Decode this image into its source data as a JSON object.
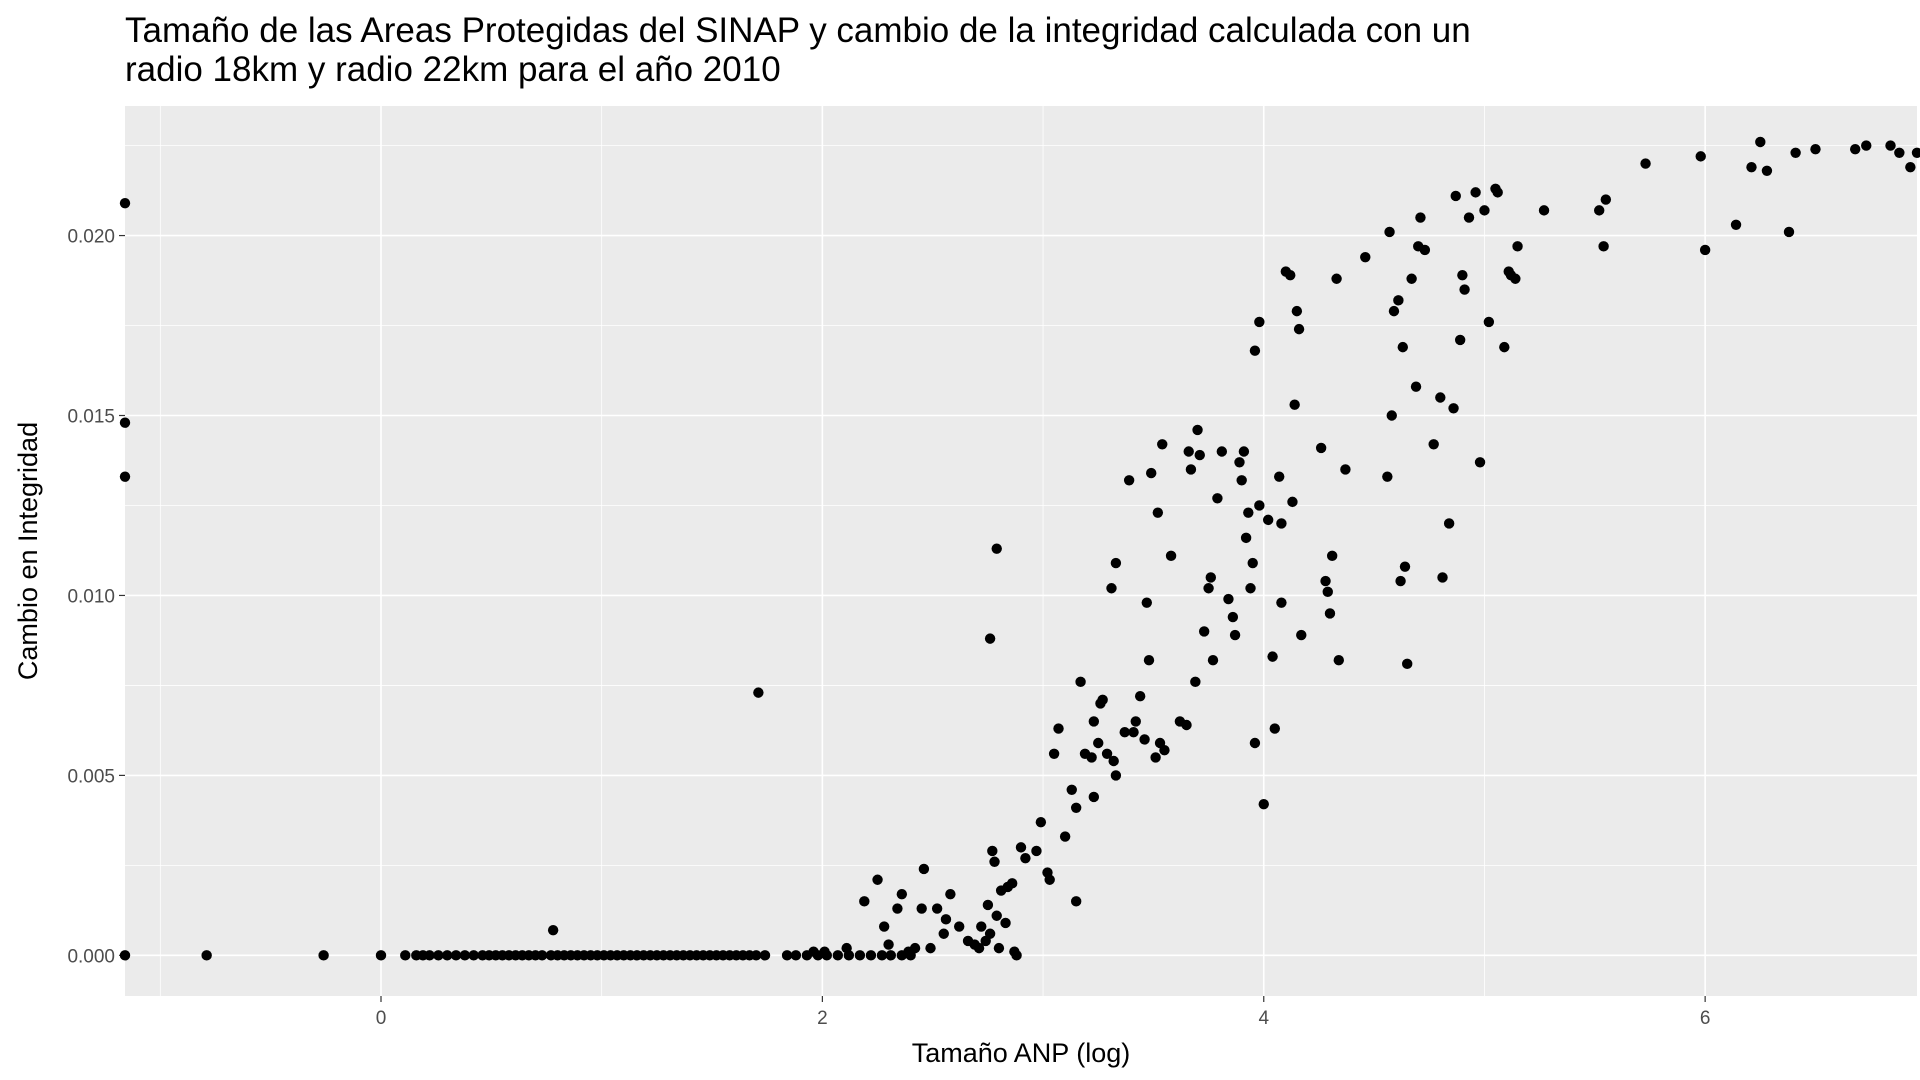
{
  "chart_data": {
    "type": "scatter",
    "title_lines": [
      "Tamaño de las Areas Protegidas del SINAP y cambio de la integridad calculada con un",
      "radio 18km y radio 22km para el año 2010"
    ],
    "xlabel": "Tamaño ANP (log)",
    "ylabel": "Cambio en Integridad",
    "xlim": [
      -1.16,
      6.96
    ],
    "ylim": [
      -0.00113,
      0.0236
    ],
    "x_ticks": [
      0,
      2,
      4,
      6
    ],
    "x_tick_labels": [
      "0",
      "2",
      "4",
      "6"
    ],
    "y_ticks": [
      0,
      0.005,
      0.01,
      0.015,
      0.02
    ],
    "y_tick_labels": [
      "0.000",
      "0.005",
      "0.010",
      "0.015",
      "0.020"
    ],
    "grid": true,
    "point_color": "#000000",
    "panel_color": "#ebebeb",
    "points": [
      [
        -1.16,
        0.0209
      ],
      [
        -1.16,
        0.0148
      ],
      [
        -1.16,
        0.0133
      ],
      [
        -1.16,
        0.0
      ],
      [
        -0.79,
        0.0
      ],
      [
        -0.26,
        0.0
      ],
      [
        0.0,
        0.0
      ],
      [
        0.11,
        0.0
      ],
      [
        0.16,
        0.0
      ],
      [
        0.19,
        0.0
      ],
      [
        0.22,
        0.0
      ],
      [
        0.26,
        0.0
      ],
      [
        0.3,
        0.0
      ],
      [
        0.34,
        0.0
      ],
      [
        0.38,
        0.0
      ],
      [
        0.42,
        0.0
      ],
      [
        0.46,
        0.0
      ],
      [
        0.49,
        0.0
      ],
      [
        0.52,
        0.0
      ],
      [
        0.55,
        0.0
      ],
      [
        0.58,
        0.0
      ],
      [
        0.61,
        0.0
      ],
      [
        0.64,
        0.0
      ],
      [
        0.67,
        0.0
      ],
      [
        0.7,
        0.0
      ],
      [
        0.73,
        0.0
      ],
      [
        0.77,
        0.0
      ],
      [
        0.8,
        0.0
      ],
      [
        0.83,
        0.0
      ],
      [
        0.86,
        0.0
      ],
      [
        0.89,
        0.0
      ],
      [
        0.92,
        0.0
      ],
      [
        0.95,
        0.0
      ],
      [
        0.98,
        0.0
      ],
      [
        1.01,
        0.0
      ],
      [
        1.04,
        0.0
      ],
      [
        1.07,
        0.0
      ],
      [
        1.1,
        0.0
      ],
      [
        1.13,
        0.0
      ],
      [
        1.16,
        0.0
      ],
      [
        1.19,
        0.0
      ],
      [
        1.22,
        0.0
      ],
      [
        1.25,
        0.0
      ],
      [
        1.28,
        0.0
      ],
      [
        1.31,
        0.0
      ],
      [
        1.34,
        0.0
      ],
      [
        1.37,
        0.0
      ],
      [
        1.4,
        0.0
      ],
      [
        1.43,
        0.0
      ],
      [
        1.46,
        0.0
      ],
      [
        1.49,
        0.0
      ],
      [
        1.52,
        0.0
      ],
      [
        1.55,
        0.0
      ],
      [
        1.58,
        0.0
      ],
      [
        1.61,
        0.0
      ],
      [
        1.64,
        0.0
      ],
      [
        1.67,
        0.0
      ],
      [
        1.7,
        0.0
      ],
      [
        1.74,
        0.0
      ],
      [
        1.84,
        0.0
      ],
      [
        1.88,
        0.0
      ],
      [
        1.93,
        0.0
      ],
      [
        1.98,
        0.0
      ],
      [
        2.02,
        0.0
      ],
      [
        2.07,
        0.0
      ],
      [
        2.12,
        0.0
      ],
      [
        2.17,
        0.0
      ],
      [
        2.22,
        0.0
      ],
      [
        2.27,
        0.0
      ],
      [
        2.31,
        0.0
      ],
      [
        2.36,
        0.0
      ],
      [
        2.4,
        0.0
      ],
      [
        0.78,
        0.0007
      ],
      [
        1.71,
        0.0073
      ],
      [
        1.96,
        0.0001
      ],
      [
        2.01,
        0.0001
      ],
      [
        2.11,
        0.0002
      ],
      [
        2.19,
        0.0015
      ],
      [
        2.25,
        0.0021
      ],
      [
        2.28,
        0.0008
      ],
      [
        2.3,
        0.0003
      ],
      [
        2.34,
        0.0013
      ],
      [
        2.36,
        0.0017
      ],
      [
        2.39,
        0.0001
      ],
      [
        2.42,
        0.0002
      ],
      [
        2.45,
        0.0013
      ],
      [
        2.46,
        0.0024
      ],
      [
        2.49,
        0.0002
      ],
      [
        2.52,
        0.0013
      ],
      [
        2.55,
        0.0006
      ],
      [
        2.56,
        0.001
      ],
      [
        2.58,
        0.0017
      ],
      [
        2.62,
        0.0008
      ],
      [
        2.66,
        0.0004
      ],
      [
        2.69,
        0.0003
      ],
      [
        2.71,
        0.0002
      ],
      [
        2.72,
        0.0008
      ],
      [
        2.74,
        0.0004
      ],
      [
        2.75,
        0.0014
      ],
      [
        2.76,
        0.0006
      ],
      [
        2.77,
        0.0029
      ],
      [
        2.78,
        0.0026
      ],
      [
        2.79,
        0.0011
      ],
      [
        2.8,
        0.0002
      ],
      [
        2.81,
        0.0018
      ],
      [
        2.83,
        0.0009
      ],
      [
        2.84,
        0.0019
      ],
      [
        2.86,
        0.002
      ],
      [
        2.87,
        0.0001
      ],
      [
        2.88,
        0.0
      ],
      [
        2.9,
        0.003
      ],
      [
        2.92,
        0.0027
      ],
      [
        2.76,
        0.0088
      ],
      [
        2.79,
        0.0113
      ],
      [
        2.97,
        0.0029
      ],
      [
        2.99,
        0.0037
      ],
      [
        3.02,
        0.0023
      ],
      [
        3.03,
        0.0021
      ],
      [
        3.05,
        0.0056
      ],
      [
        3.07,
        0.0063
      ],
      [
        3.1,
        0.0033
      ],
      [
        3.13,
        0.0046
      ],
      [
        3.15,
        0.0041
      ],
      [
        3.15,
        0.0015
      ],
      [
        3.17,
        0.0076
      ],
      [
        3.19,
        0.0056
      ],
      [
        3.22,
        0.0055
      ],
      [
        3.23,
        0.0044
      ],
      [
        3.23,
        0.0065
      ],
      [
        3.25,
        0.0059
      ],
      [
        3.26,
        0.007
      ],
      [
        3.27,
        0.0071
      ],
      [
        3.29,
        0.0056
      ],
      [
        3.31,
        0.0102
      ],
      [
        3.32,
        0.0054
      ],
      [
        3.33,
        0.005
      ],
      [
        3.33,
        0.0109
      ],
      [
        3.37,
        0.0062
      ],
      [
        3.39,
        0.0132
      ],
      [
        3.41,
        0.0062
      ],
      [
        3.42,
        0.0065
      ],
      [
        3.44,
        0.0072
      ],
      [
        3.46,
        0.006
      ],
      [
        3.47,
        0.0098
      ],
      [
        3.48,
        0.0082
      ],
      [
        3.49,
        0.0134
      ],
      [
        3.51,
        0.0055
      ],
      [
        3.52,
        0.0123
      ],
      [
        3.53,
        0.0059
      ],
      [
        3.54,
        0.0142
      ],
      [
        3.55,
        0.0057
      ],
      [
        3.58,
        0.0111
      ],
      [
        3.62,
        0.0065
      ],
      [
        3.65,
        0.0064
      ],
      [
        3.66,
        0.014
      ],
      [
        3.67,
        0.0135
      ],
      [
        3.69,
        0.0076
      ],
      [
        3.7,
        0.0146
      ],
      [
        3.71,
        0.0139
      ],
      [
        3.73,
        0.009
      ],
      [
        3.75,
        0.0102
      ],
      [
        3.76,
        0.0105
      ],
      [
        3.77,
        0.0082
      ],
      [
        3.79,
        0.0127
      ],
      [
        3.81,
        0.014
      ],
      [
        3.84,
        0.0099
      ],
      [
        3.86,
        0.0094
      ],
      [
        3.87,
        0.0089
      ],
      [
        3.89,
        0.0137
      ],
      [
        3.9,
        0.0132
      ],
      [
        3.91,
        0.014
      ],
      [
        3.92,
        0.0116
      ],
      [
        3.93,
        0.0123
      ],
      [
        3.94,
        0.0102
      ],
      [
        3.95,
        0.0109
      ],
      [
        3.96,
        0.0059
      ],
      [
        3.98,
        0.0125
      ],
      [
        3.98,
        0.0176
      ],
      [
        4.0,
        0.0042
      ],
      [
        4.02,
        0.0121
      ],
      [
        4.04,
        0.0083
      ],
      [
        4.05,
        0.0063
      ],
      [
        4.07,
        0.0133
      ],
      [
        4.08,
        0.0098
      ],
      [
        4.08,
        0.012
      ],
      [
        4.1,
        0.019
      ],
      [
        4.12,
        0.0189
      ],
      [
        4.13,
        0.0126
      ],
      [
        4.14,
        0.0153
      ],
      [
        4.15,
        0.0179
      ],
      [
        4.16,
        0.0174
      ],
      [
        4.17,
        0.0089
      ],
      [
        3.96,
        0.0168
      ],
      [
        4.26,
        0.0141
      ],
      [
        4.28,
        0.0104
      ],
      [
        4.29,
        0.0101
      ],
      [
        4.3,
        0.0095
      ],
      [
        4.31,
        0.0111
      ],
      [
        4.33,
        0.0188
      ],
      [
        4.34,
        0.0082
      ],
      [
        4.37,
        0.0135
      ],
      [
        4.46,
        0.0194
      ],
      [
        4.56,
        0.0133
      ],
      [
        4.57,
        0.0201
      ],
      [
        4.58,
        0.015
      ],
      [
        4.59,
        0.0179
      ],
      [
        4.61,
        0.0182
      ],
      [
        4.62,
        0.0104
      ],
      [
        4.63,
        0.0169
      ],
      [
        4.64,
        0.0108
      ],
      [
        4.65,
        0.0081
      ],
      [
        4.67,
        0.0188
      ],
      [
        4.69,
        0.0158
      ],
      [
        4.7,
        0.0197
      ],
      [
        4.71,
        0.0205
      ],
      [
        4.73,
        0.0196
      ],
      [
        4.77,
        0.0142
      ],
      [
        4.8,
        0.0155
      ],
      [
        4.81,
        0.0105
      ],
      [
        4.84,
        0.012
      ],
      [
        4.86,
        0.0152
      ],
      [
        4.87,
        0.0211
      ],
      [
        4.89,
        0.0171
      ],
      [
        4.9,
        0.0189
      ],
      [
        4.91,
        0.0185
      ],
      [
        4.93,
        0.0205
      ],
      [
        4.96,
        0.0212
      ],
      [
        4.98,
        0.0137
      ],
      [
        5.0,
        0.0207
      ],
      [
        5.02,
        0.0176
      ],
      [
        5.05,
        0.0213
      ],
      [
        5.06,
        0.0212
      ],
      [
        5.09,
        0.0169
      ],
      [
        5.11,
        0.019
      ],
      [
        5.12,
        0.0189
      ],
      [
        5.14,
        0.0188
      ],
      [
        5.15,
        0.0197
      ],
      [
        5.27,
        0.0207
      ],
      [
        5.52,
        0.0207
      ],
      [
        5.54,
        0.0197
      ],
      [
        5.55,
        0.021
      ],
      [
        5.73,
        0.022
      ],
      [
        5.98,
        0.0222
      ],
      [
        6.0,
        0.0196
      ],
      [
        6.14,
        0.0203
      ],
      [
        6.21,
        0.0219
      ],
      [
        6.25,
        0.0226
      ],
      [
        6.28,
        0.0218
      ],
      [
        6.38,
        0.0201
      ],
      [
        6.41,
        0.0223
      ],
      [
        6.5,
        0.0224
      ],
      [
        6.73,
        0.0225
      ],
      [
        6.84,
        0.0225
      ],
      [
        6.88,
        0.0223
      ],
      [
        6.93,
        0.0219
      ],
      [
        6.96,
        0.0223
      ],
      [
        6.68,
        0.0224
      ]
    ]
  }
}
